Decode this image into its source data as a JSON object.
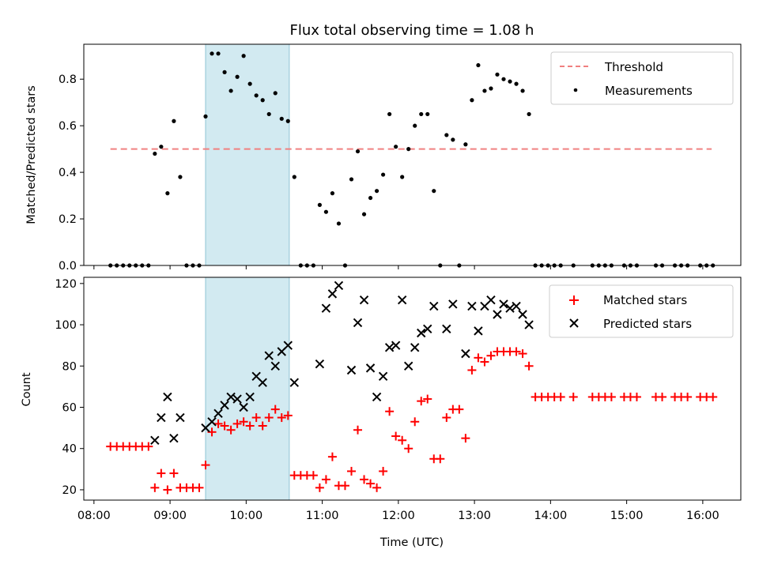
{
  "chart_data": [
    {
      "type": "scatter",
      "title": "Flux total observing time = 1.08 h",
      "ylabel": "Matched/Predicted stars",
      "xlabel": "",
      "xlim": [
        "07:52",
        "16:30"
      ],
      "ylim": [
        0,
        0.95
      ],
      "yticks": [
        0.0,
        0.2,
        0.4,
        0.6,
        0.8
      ],
      "ytick_labels": [
        "0.0",
        "0.2",
        "0.4",
        "0.6",
        "0.8"
      ],
      "highlight_span": [
        "09:28",
        "10:34"
      ],
      "highlight_color": "#add8e6",
      "threshold": {
        "name": "Threshold",
        "value": 0.5,
        "x": [
          "08:13",
          "16:07"
        ],
        "color": "#f08080"
      },
      "legend": {
        "position": "top-right",
        "entries": [
          "Threshold",
          "Measurements"
        ]
      },
      "series": [
        {
          "name": "Measurements",
          "color": "#000000",
          "marker": "dot",
          "points": [
            [
              "08:13",
              0
            ],
            [
              "08:18",
              0
            ],
            [
              "08:23",
              0
            ],
            [
              "08:28",
              0
            ],
            [
              "08:33",
              0
            ],
            [
              "08:38",
              0
            ],
            [
              "08:43",
              0
            ],
            [
              "08:48",
              0.48
            ],
            [
              "08:53",
              0.51
            ],
            [
              "08:58",
              0.31
            ],
            [
              "09:03",
              0.62
            ],
            [
              "09:08",
              0.38
            ],
            [
              "09:13",
              0
            ],
            [
              "09:18",
              0
            ],
            [
              "09:23",
              0
            ],
            [
              "09:28",
              0.64
            ],
            [
              "09:33",
              0.91
            ],
            [
              "09:38",
              0.91
            ],
            [
              "09:43",
              0.83
            ],
            [
              "09:48",
              0.75
            ],
            [
              "09:53",
              0.81
            ],
            [
              "09:58",
              0.9
            ],
            [
              "10:03",
              0.78
            ],
            [
              "10:08",
              0.73
            ],
            [
              "10:13",
              0.71
            ],
            [
              "10:18",
              0.65
            ],
            [
              "10:23",
              0.74
            ],
            [
              "10:28",
              0.63
            ],
            [
              "10:33",
              0.62
            ],
            [
              "10:38",
              0.38
            ],
            [
              "10:43",
              0
            ],
            [
              "10:48",
              0
            ],
            [
              "10:53",
              0
            ],
            [
              "10:58",
              0.26
            ],
            [
              "11:03",
              0.23
            ],
            [
              "11:08",
              0.31
            ],
            [
              "11:13",
              0.18
            ],
            [
              "11:18",
              0
            ],
            [
              "11:23",
              0.37
            ],
            [
              "11:28",
              0.49
            ],
            [
              "11:33",
              0.22
            ],
            [
              "11:38",
              0.29
            ],
            [
              "11:43",
              0.32
            ],
            [
              "11:48",
              0.39
            ],
            [
              "11:53",
              0.65
            ],
            [
              "11:58",
              0.51
            ],
            [
              "12:03",
              0.38
            ],
            [
              "12:08",
              0.5
            ],
            [
              "12:13",
              0.6
            ],
            [
              "12:18",
              0.65
            ],
            [
              "12:23",
              0.65
            ],
            [
              "12:28",
              0.32
            ],
            [
              "12:33",
              0
            ],
            [
              "12:38",
              0.56
            ],
            [
              "12:43",
              0.54
            ],
            [
              "12:48",
              0
            ],
            [
              "12:53",
              0.52
            ],
            [
              "12:58",
              0.71
            ],
            [
              "13:03",
              0.86
            ],
            [
              "13:08",
              0.75
            ],
            [
              "13:13",
              0.76
            ],
            [
              "13:18",
              0.82
            ],
            [
              "13:23",
              0.8
            ],
            [
              "13:28",
              0.79
            ],
            [
              "13:33",
              0.78
            ],
            [
              "13:38",
              0.75
            ],
            [
              "13:43",
              0.65
            ],
            [
              "13:48",
              0
            ],
            [
              "13:53",
              0
            ],
            [
              "13:58",
              0
            ],
            [
              "14:03",
              0
            ],
            [
              "14:08",
              0
            ],
            [
              "14:18",
              0
            ],
            [
              "14:33",
              0
            ],
            [
              "14:38",
              0
            ],
            [
              "14:43",
              0
            ],
            [
              "14:48",
              0
            ],
            [
              "14:58",
              0
            ],
            [
              "15:03",
              0
            ],
            [
              "15:08",
              0
            ],
            [
              "15:23",
              0
            ],
            [
              "15:28",
              0
            ],
            [
              "15:38",
              0
            ],
            [
              "15:43",
              0
            ],
            [
              "15:48",
              0
            ],
            [
              "15:58",
              0
            ],
            [
              "16:03",
              0
            ],
            [
              "16:08",
              0
            ]
          ]
        }
      ]
    },
    {
      "type": "scatter",
      "title": "",
      "ylabel": "Count",
      "xlabel": "Time (UTC)",
      "xlim": [
        "07:52",
        "16:30"
      ],
      "ylim": [
        15,
        123
      ],
      "yticks": [
        20,
        40,
        60,
        80,
        100,
        120
      ],
      "ytick_labels": [
        "20",
        "40",
        "60",
        "80",
        "100",
        "120"
      ],
      "xticks": [
        "08:00",
        "09:00",
        "10:00",
        "11:00",
        "12:00",
        "13:00",
        "14:00",
        "15:00",
        "16:00"
      ],
      "xtick_labels": [
        "08:00",
        "09:00",
        "10:00",
        "11:00",
        "12:00",
        "13:00",
        "14:00",
        "15:00",
        "16:00"
      ],
      "highlight_span": [
        "09:28",
        "10:34"
      ],
      "highlight_color": "#add8e6",
      "legend": {
        "position": "top-right",
        "entries": [
          "Matched stars",
          "Predicted stars"
        ]
      },
      "series": [
        {
          "name": "Matched stars",
          "color": "#ff0000",
          "marker": "plus",
          "points": [
            [
              "08:13",
              41
            ],
            [
              "08:18",
              41
            ],
            [
              "08:23",
              41
            ],
            [
              "08:28",
              41
            ],
            [
              "08:33",
              41
            ],
            [
              "08:38",
              41
            ],
            [
              "08:43",
              41
            ],
            [
              "08:48",
              21
            ],
            [
              "08:53",
              28
            ],
            [
              "08:58",
              20
            ],
            [
              "09:03",
              28
            ],
            [
              "09:08",
              21
            ],
            [
              "09:13",
              21
            ],
            [
              "09:18",
              21
            ],
            [
              "09:23",
              21
            ],
            [
              "09:28",
              32
            ],
            [
              "09:33",
              48
            ],
            [
              "09:38",
              52
            ],
            [
              "09:43",
              51
            ],
            [
              "09:48",
              49
            ],
            [
              "09:53",
              52
            ],
            [
              "09:58",
              53
            ],
            [
              "10:03",
              51
            ],
            [
              "10:08",
              55
            ],
            [
              "10:13",
              51
            ],
            [
              "10:18",
              55
            ],
            [
              "10:23",
              59
            ],
            [
              "10:28",
              55
            ],
            [
              "10:33",
              56
            ],
            [
              "10:38",
              27
            ],
            [
              "10:43",
              27
            ],
            [
              "10:48",
              27
            ],
            [
              "10:53",
              27
            ],
            [
              "10:58",
              21
            ],
            [
              "11:03",
              25
            ],
            [
              "11:08",
              36
            ],
            [
              "11:13",
              22
            ],
            [
              "11:18",
              22
            ],
            [
              "11:23",
              29
            ],
            [
              "11:28",
              49
            ],
            [
              "11:33",
              25
            ],
            [
              "11:38",
              23
            ],
            [
              "11:43",
              21
            ],
            [
              "11:48",
              29
            ],
            [
              "11:53",
              58
            ],
            [
              "11:58",
              46
            ],
            [
              "12:03",
              44
            ],
            [
              "12:08",
              40
            ],
            [
              "12:13",
              53
            ],
            [
              "12:18",
              63
            ],
            [
              "12:23",
              64
            ],
            [
              "12:28",
              35
            ],
            [
              "12:33",
              35
            ],
            [
              "12:38",
              55
            ],
            [
              "12:43",
              59
            ],
            [
              "12:48",
              59
            ],
            [
              "12:53",
              45
            ],
            [
              "12:58",
              78
            ],
            [
              "13:03",
              84
            ],
            [
              "13:08",
              82
            ],
            [
              "13:13",
              85
            ],
            [
              "13:18",
              87
            ],
            [
              "13:23",
              87
            ],
            [
              "13:28",
              87
            ],
            [
              "13:33",
              87
            ],
            [
              "13:38",
              86
            ],
            [
              "13:43",
              80
            ],
            [
              "13:48",
              65
            ],
            [
              "13:53",
              65
            ],
            [
              "13:58",
              65
            ],
            [
              "14:03",
              65
            ],
            [
              "14:08",
              65
            ],
            [
              "14:18",
              65
            ],
            [
              "14:33",
              65
            ],
            [
              "14:38",
              65
            ],
            [
              "14:43",
              65
            ],
            [
              "14:48",
              65
            ],
            [
              "14:58",
              65
            ],
            [
              "15:03",
              65
            ],
            [
              "15:08",
              65
            ],
            [
              "15:23",
              65
            ],
            [
              "15:28",
              65
            ],
            [
              "15:38",
              65
            ],
            [
              "15:43",
              65
            ],
            [
              "15:48",
              65
            ],
            [
              "15:58",
              65
            ],
            [
              "16:03",
              65
            ],
            [
              "16:08",
              65
            ]
          ]
        },
        {
          "name": "Predicted stars",
          "color": "#000000",
          "marker": "x",
          "points": [
            [
              "08:48",
              44
            ],
            [
              "08:53",
              55
            ],
            [
              "08:58",
              65
            ],
            [
              "09:03",
              45
            ],
            [
              "09:08",
              55
            ],
            [
              "09:28",
              50
            ],
            [
              "09:33",
              53
            ],
            [
              "09:38",
              57
            ],
            [
              "09:43",
              61
            ],
            [
              "09:48",
              65
            ],
            [
              "09:53",
              64
            ],
            [
              "09:58",
              60
            ],
            [
              "10:03",
              65
            ],
            [
              "10:08",
              75
            ],
            [
              "10:13",
              72
            ],
            [
              "10:18",
              85
            ],
            [
              "10:23",
              80
            ],
            [
              "10:28",
              87
            ],
            [
              "10:33",
              90
            ],
            [
              "10:38",
              72
            ],
            [
              "10:58",
              81
            ],
            [
              "11:03",
              108
            ],
            [
              "11:08",
              115
            ],
            [
              "11:13",
              119
            ],
            [
              "11:23",
              78
            ],
            [
              "11:28",
              101
            ],
            [
              "11:33",
              112
            ],
            [
              "11:38",
              79
            ],
            [
              "11:43",
              65
            ],
            [
              "11:48",
              75
            ],
            [
              "11:53",
              89
            ],
            [
              "11:58",
              90
            ],
            [
              "12:03",
              112
            ],
            [
              "12:08",
              80
            ],
            [
              "12:13",
              89
            ],
            [
              "12:18",
              96
            ],
            [
              "12:23",
              98
            ],
            [
              "12:28",
              109
            ],
            [
              "12:38",
              98
            ],
            [
              "12:43",
              110
            ],
            [
              "12:53",
              86
            ],
            [
              "12:58",
              109
            ],
            [
              "13:03",
              97
            ],
            [
              "13:08",
              109
            ],
            [
              "13:13",
              112
            ],
            [
              "13:18",
              105
            ],
            [
              "13:23",
              110
            ],
            [
              "13:28",
              108
            ],
            [
              "13:33",
              109
            ],
            [
              "13:38",
              105
            ],
            [
              "13:43",
              100
            ]
          ]
        }
      ]
    }
  ]
}
